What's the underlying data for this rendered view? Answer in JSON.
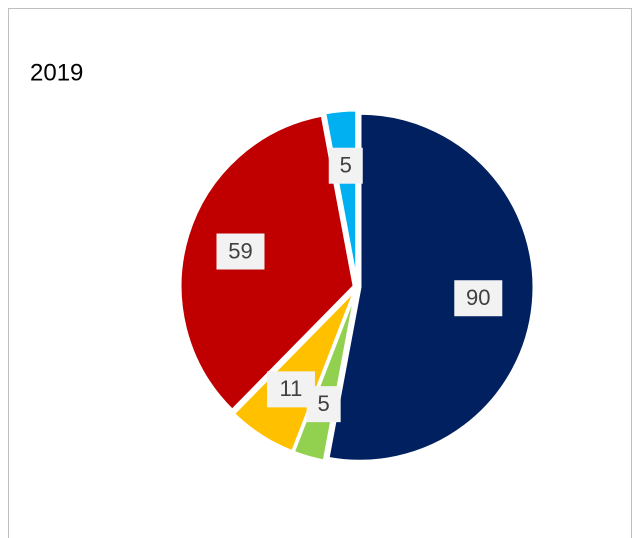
{
  "chart_data": {
    "type": "pie",
    "title": "2019",
    "values": [
      90,
      5,
      11,
      59,
      5
    ],
    "colors": [
      "#002060",
      "#92d050",
      "#ffc000",
      "#c00000",
      "#00b0f0"
    ]
  }
}
